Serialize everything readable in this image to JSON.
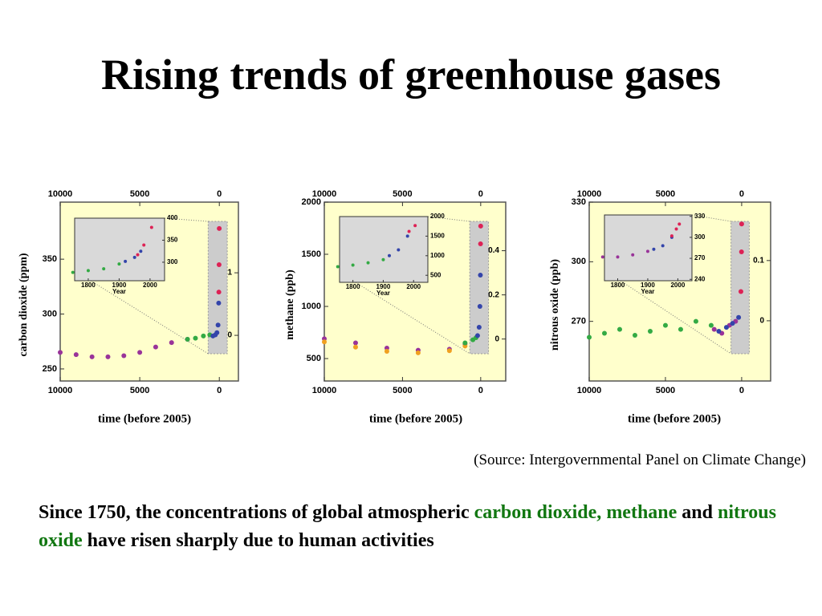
{
  "title": "Rising trends of greenhouse gases",
  "chart_data": [
    {
      "type": "scatter",
      "ylabel": "carbon dioxide (ppm)",
      "xlabel": "time (before 2005)",
      "xlim": [
        10000,
        -1200
      ],
      "xticks": [
        10000,
        5000,
        0
      ],
      "ylim": [
        239,
        402
      ],
      "yticks": [
        250,
        300,
        350
      ],
      "y2lim": [
        -0.73,
        2.13
      ],
      "y2ticks": [
        0,
        1
      ],
      "series": [
        {
          "color": "#993399",
          "x": [
            10000,
            9000,
            8000,
            7000,
            6000,
            5000,
            4000,
            3000,
            2000
          ],
          "values": [
            265,
            263,
            261,
            261,
            262,
            265,
            270,
            274,
            277
          ]
        },
        {
          "color": "#33aa44",
          "x": [
            2000,
            1500,
            1000,
            600
          ],
          "values": [
            277,
            278,
            280,
            281
          ]
        },
        {
          "color": "#3344aa",
          "x": [
            400,
            250,
            150,
            80,
            40
          ],
          "values": [
            280,
            281,
            283,
            290,
            310
          ]
        },
        {
          "color": "#dd2255",
          "x": [
            30,
            15,
            5
          ],
          "values": [
            320,
            345,
            378
          ]
        }
      ],
      "inset": {
        "xlabel": "Year",
        "xlim": [
          1756,
          2047
        ],
        "xticks": [
          1800,
          1900,
          2000
        ],
        "ylim": [
          258,
          400
        ],
        "yticks": [
          300,
          350,
          400
        ],
        "series": [
          {
            "color": "#33aa44",
            "x": [
              1750,
              1800,
              1850,
              1900
            ],
            "values": [
              277,
              281,
              285,
              296
            ]
          },
          {
            "color": "#3344aa",
            "x": [
              1920,
              1950,
              1970
            ],
            "values": [
              302,
              311,
              325
            ]
          },
          {
            "color": "#dd2255",
            "x": [
              1960,
              1980,
              2005
            ],
            "values": [
              317,
              339,
              379
            ]
          }
        ]
      }
    },
    {
      "type": "scatter",
      "ylabel": "methane (ppb)",
      "xlabel": "time (before 2005)",
      "xlim": [
        10000,
        -1600
      ],
      "xticks": [
        10000,
        5000,
        0
      ],
      "ylim": [
        285,
        2000
      ],
      "yticks": [
        500,
        1000,
        1500,
        2000
      ],
      "y2lim": [
        -0.19,
        0.62
      ],
      "y2ticks": [
        0,
        0.2,
        0.4
      ],
      "series": [
        {
          "color": "#993399",
          "x": [
            10000,
            8000,
            6000,
            4000,
            2000,
            1000
          ],
          "values": [
            690,
            650,
            600,
            580,
            590,
            640
          ]
        },
        {
          "color": "#f0a020",
          "x": [
            10000,
            8000,
            6000,
            4000,
            2000,
            1000
          ],
          "values": [
            660,
            610,
            570,
            555,
            575,
            620
          ]
        },
        {
          "color": "#33aa44",
          "x": [
            1000,
            500,
            300
          ],
          "values": [
            650,
            680,
            700
          ]
        },
        {
          "color": "#3344aa",
          "x": [
            200,
            100,
            50,
            20
          ],
          "values": [
            720,
            800,
            1000,
            1300
          ]
        },
        {
          "color": "#dd2255",
          "x": [
            10,
            0
          ],
          "values": [
            1600,
            1770
          ]
        }
      ],
      "inset": {
        "xlabel": "Year",
        "xlim": [
          1756,
          2047
        ],
        "xticks": [
          1800,
          1900,
          2000
        ],
        "ylim": [
          320,
          2000
        ],
        "yticks": [
          500,
          1000,
          1500,
          2000
        ],
        "series": [
          {
            "color": "#33aa44",
            "x": [
              1750,
              1800,
              1850,
              1900
            ],
            "values": [
              720,
              760,
              820,
              900
            ]
          },
          {
            "color": "#3344aa",
            "x": [
              1920,
              1950,
              1980
            ],
            "values": [
              1000,
              1150,
              1500
            ]
          },
          {
            "color": "#dd2255",
            "x": [
              1985,
              2005
            ],
            "values": [
              1620,
              1770
            ]
          }
        ]
      }
    },
    {
      "type": "scatter",
      "ylabel": "nitrous oxide (ppb)",
      "xlabel": "time (before 2005)",
      "xlim": [
        10000,
        -1900
      ],
      "xticks": [
        10000,
        5000,
        0
      ],
      "ylim": [
        240,
        330
      ],
      "yticks": [
        270,
        300,
        330
      ],
      "y2lim": [
        -0.1,
        0.197
      ],
      "y2ticks": [
        0,
        0.1
      ],
      "series": [
        {
          "color": "#33aa44",
          "x": [
            10000,
            9000,
            8000,
            7000,
            6000,
            5000,
            4000,
            3000,
            2000
          ],
          "values": [
            262,
            264,
            266,
            263,
            265,
            268,
            266,
            270,
            268
          ]
        },
        {
          "color": "#993399",
          "x": [
            1800,
            1300,
            800,
            400
          ],
          "values": [
            266,
            264,
            268,
            270
          ]
        },
        {
          "color": "#3344aa",
          "x": [
            1500,
            1000,
            600,
            200
          ],
          "values": [
            265,
            267,
            269,
            272
          ]
        },
        {
          "color": "#dd2255",
          "x": [
            50,
            10,
            0
          ],
          "values": [
            285,
            305,
            319
          ]
        }
      ],
      "inset": {
        "xlabel": "Year",
        "xlim": [
          1756,
          2047
        ],
        "xticks": [
          1800,
          1900,
          2000
        ],
        "ylim": [
          238,
          332
        ],
        "yticks": [
          240,
          270,
          300,
          330
        ],
        "series": [
          {
            "color": "#993399",
            "x": [
              1750,
              1800,
              1850,
              1900
            ],
            "values": [
              272,
              272,
              275,
              280
            ]
          },
          {
            "color": "#3344aa",
            "x": [
              1920,
              1950,
              1980
            ],
            "values": [
              283,
              288,
              300
            ]
          },
          {
            "color": "#dd2255",
            "x": [
              1980,
              1995,
              2005
            ],
            "values": [
              302,
              312,
              319
            ]
          }
        ]
      }
    }
  ],
  "source": "(Source: Intergovernmental Panel on Climate Change)",
  "caption": [
    {
      "text": "Since 1750, the concentrations of global atmospheric ",
      "color": "#000000"
    },
    {
      "text": "carbon dioxide,",
      "color": "#117711"
    },
    {
      "text": " ",
      "color": "#000000"
    },
    {
      "text": "methane",
      "color": "#117711"
    },
    {
      "text": " and ",
      "color": "#000000"
    },
    {
      "text": "nitrous oxide",
      "color": "#117711"
    },
    {
      "text": " have risen sharply due to human activities",
      "color": "#000000"
    }
  ]
}
